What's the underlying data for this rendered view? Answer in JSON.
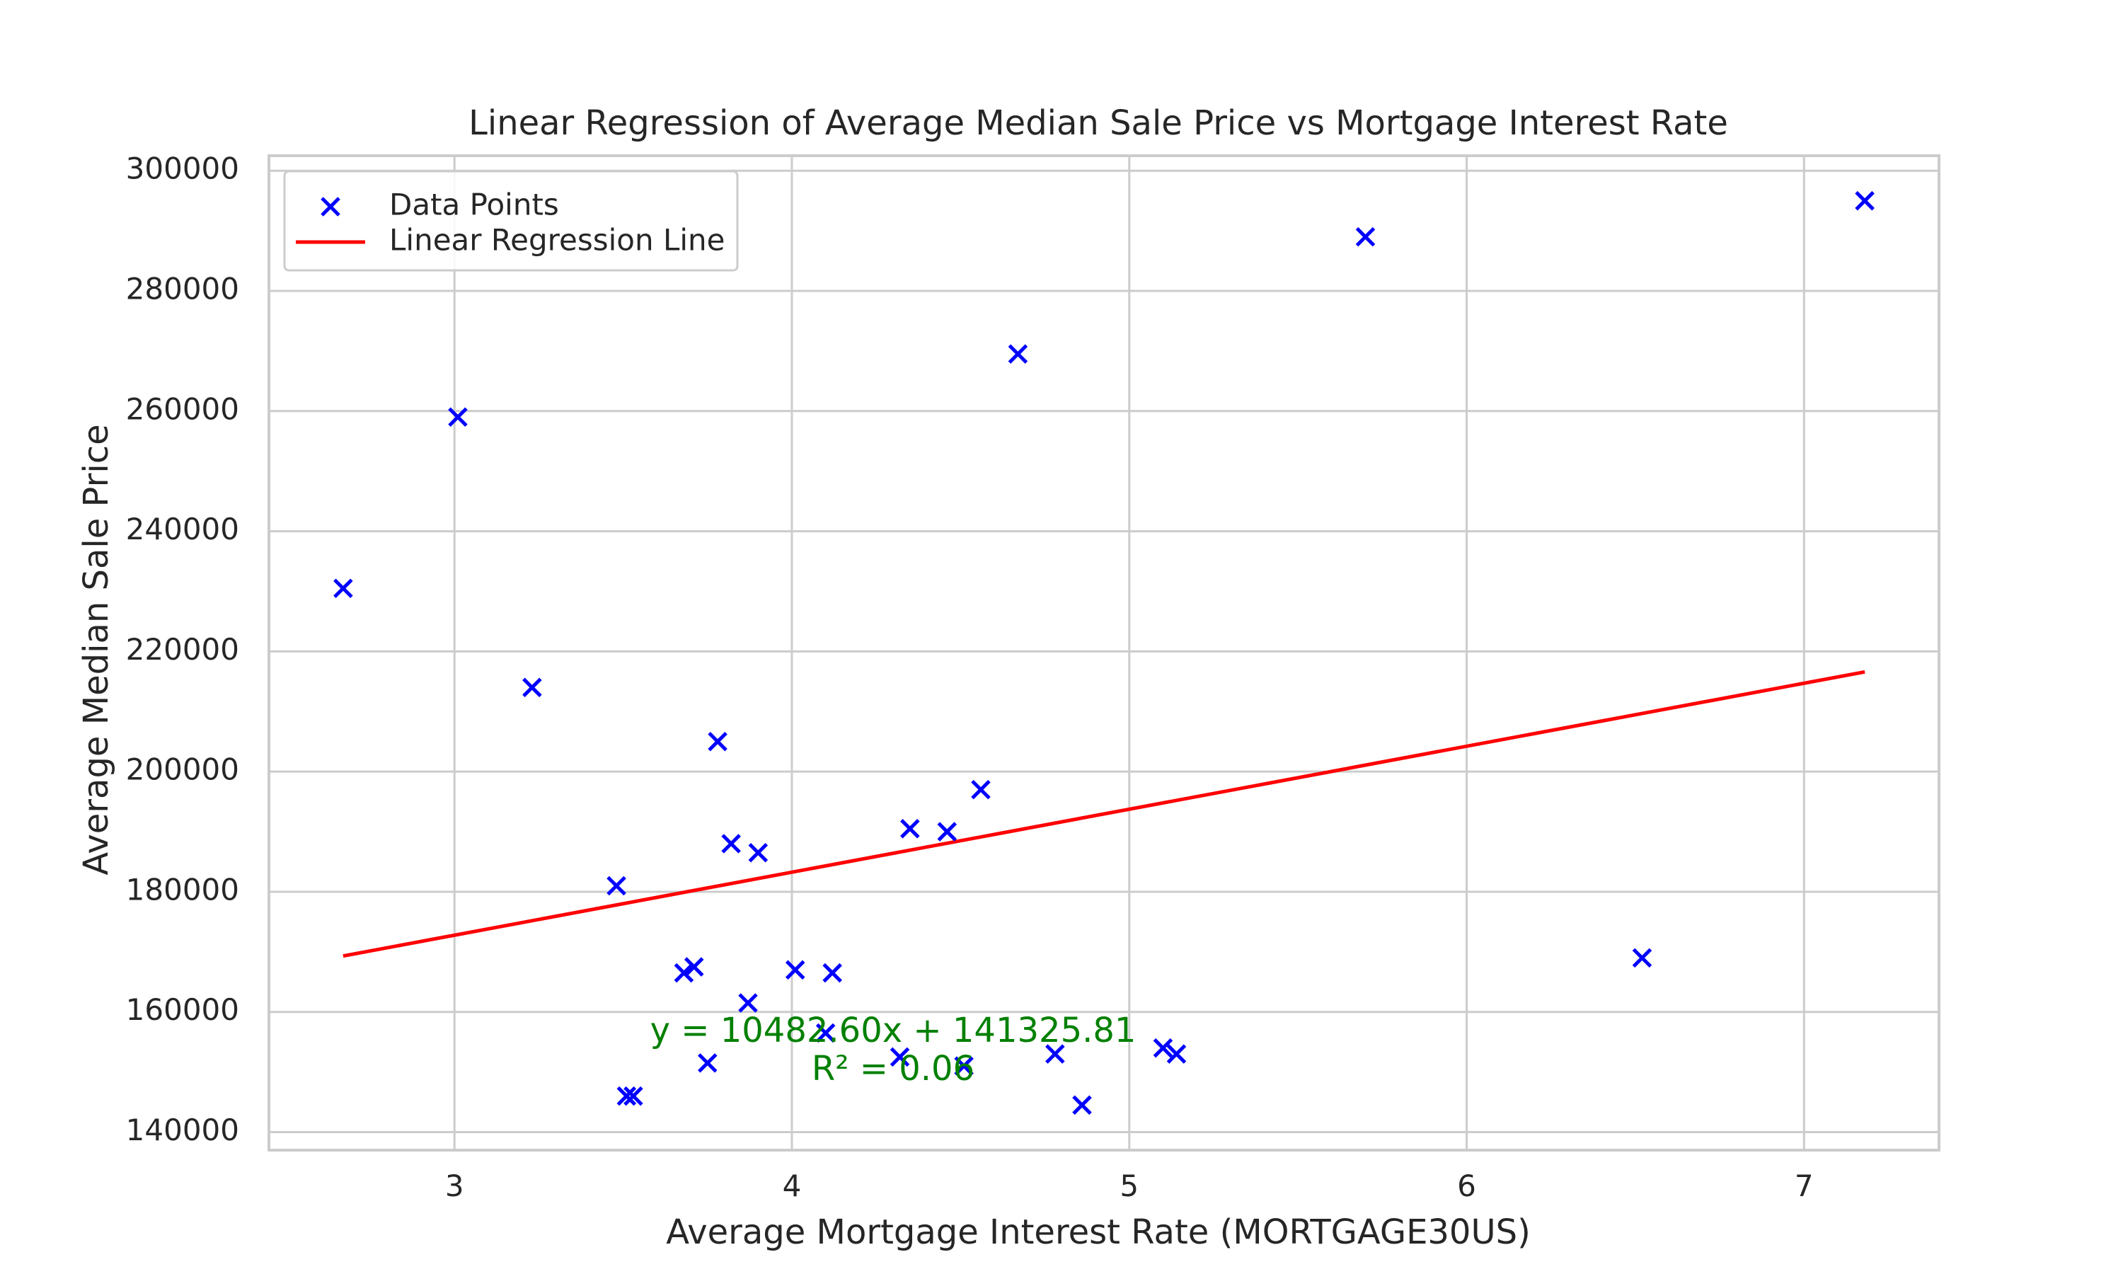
{
  "chart_data": {
    "type": "scatter",
    "title": "Linear Regression of Average Median Sale Price vs Mortgage Interest Rate",
    "xlabel": "Average Mortgage Interest Rate (MORTGAGE30US)",
    "ylabel": "Average Median Sale Price",
    "xlim": [
      2.45,
      7.4
    ],
    "ylim": [
      137000,
      302500
    ],
    "xticks": [
      3,
      4,
      5,
      6,
      7
    ],
    "xtick_labels": [
      "3",
      "4",
      "5",
      "6",
      "7"
    ],
    "yticks": [
      140000,
      160000,
      180000,
      200000,
      220000,
      240000,
      260000,
      280000,
      300000
    ],
    "ytick_labels": [
      "140000",
      "160000",
      "180000",
      "200000",
      "220000",
      "240000",
      "260000",
      "280000",
      "300000"
    ],
    "grid": true,
    "legend_position": "top-left",
    "series": [
      {
        "name": "Data Points",
        "kind": "scatter",
        "marker": "x",
        "color": "#0000ff",
        "points": [
          {
            "x": 2.67,
            "y": 230500
          },
          {
            "x": 3.01,
            "y": 259000
          },
          {
            "x": 3.23,
            "y": 214000
          },
          {
            "x": 3.48,
            "y": 181000
          },
          {
            "x": 3.51,
            "y": 146000
          },
          {
            "x": 3.53,
            "y": 146000
          },
          {
            "x": 3.68,
            "y": 166500
          },
          {
            "x": 3.71,
            "y": 167500
          },
          {
            "x": 3.75,
            "y": 151500
          },
          {
            "x": 3.78,
            "y": 205000
          },
          {
            "x": 3.82,
            "y": 188000
          },
          {
            "x": 3.87,
            "y": 161500
          },
          {
            "x": 3.9,
            "y": 186500
          },
          {
            "x": 4.01,
            "y": 167000
          },
          {
            "x": 4.1,
            "y": 156500
          },
          {
            "x": 4.12,
            "y": 166500
          },
          {
            "x": 4.32,
            "y": 152500
          },
          {
            "x": 4.35,
            "y": 190500
          },
          {
            "x": 4.46,
            "y": 190000
          },
          {
            "x": 4.51,
            "y": 151000
          },
          {
            "x": 4.56,
            "y": 197000
          },
          {
            "x": 4.67,
            "y": 269500
          },
          {
            "x": 4.78,
            "y": 153000
          },
          {
            "x": 4.86,
            "y": 144500
          },
          {
            "x": 5.1,
            "y": 154000
          },
          {
            "x": 5.14,
            "y": 153000
          },
          {
            "x": 5.7,
            "y": 289000
          },
          {
            "x": 6.52,
            "y": 169000
          },
          {
            "x": 7.18,
            "y": 295000
          }
        ]
      },
      {
        "name": "Linear Regression Line",
        "kind": "line",
        "color": "#ff0000",
        "slope": 10482.6,
        "intercept": 141325.81,
        "x_range": [
          2.67,
          7.18
        ]
      }
    ],
    "annotation": {
      "lines": [
        "y = 10482.60x + 141325.81",
        "R² = 0.06"
      ],
      "color": "#008000",
      "x": 4.3,
      "y": 155000
    }
  }
}
